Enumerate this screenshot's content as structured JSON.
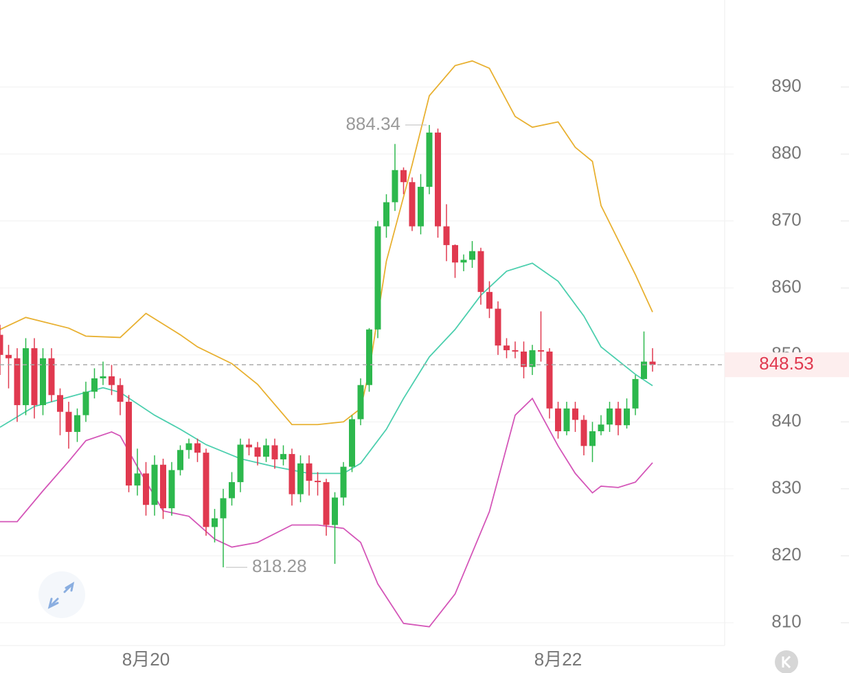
{
  "chart_data": {
    "type": "candlestick",
    "categories": [
      null,
      null,
      null,
      null,
      null,
      null,
      null,
      null,
      null,
      null,
      null,
      null,
      null,
      null,
      null,
      null,
      null,
      "8月20",
      null,
      null,
      null,
      null,
      null,
      null,
      null,
      null,
      null,
      null,
      null,
      null,
      null,
      null,
      null,
      null,
      null,
      null,
      null,
      null,
      null,
      null,
      null,
      null,
      null,
      null,
      null,
      null,
      null,
      null,
      null,
      null,
      null,
      null,
      null,
      null,
      null,
      null,
      null,
      null,
      null,
      null,
      null,
      null,
      null,
      null,
      null,
      "8月22",
      null,
      null,
      null,
      null,
      null,
      null,
      null,
      null,
      null,
      null,
      null
    ],
    "open": [
      853,
      850,
      849.5,
      842.5,
      851,
      842.5,
      849.5,
      844,
      841.5,
      838.5,
      841,
      844.5,
      846.5,
      846.8,
      845.5,
      843,
      830.5,
      832.3,
      827.6,
      833.6,
      827.1,
      832.8,
      835.8,
      836.8,
      835.4,
      824.3,
      825.6,
      828.6,
      831,
      836.6,
      836.2,
      834.8,
      836.5,
      834.4,
      835.2,
      829.2,
      833.8,
      831.2,
      831,
      824.6,
      828.7,
      833.3,
      840.4,
      845.5,
      853.8,
      869.2,
      872.8,
      877.6,
      875.8,
      869.2,
      875.1,
      883.2,
      869.2,
      866.4,
      863.8,
      864.2,
      865.5,
      859.4,
      856.9,
      851.4,
      850.7,
      850.5,
      848.2,
      850.7,
      850.5,
      842,
      838.6,
      842,
      840.3,
      836.4,
      838.6,
      839.6,
      842,
      839.5,
      842,
      846.4,
      849
    ],
    "high": [
      854.5,
      851.5,
      851,
      852.5,
      852.5,
      851,
      851,
      845,
      843,
      842,
      846,
      848,
      849,
      848.5,
      846.5,
      844,
      836,
      834,
      835,
      834.5,
      834,
      836.5,
      837.5,
      837.5,
      836,
      827,
      830,
      832.5,
      837.5,
      837.5,
      837,
      837.5,
      837.5,
      836.5,
      836,
      835,
      835,
      832.5,
      831.5,
      829.5,
      834,
      841,
      846.5,
      854,
      870,
      874,
      881.5,
      878,
      876.5,
      877,
      884.34,
      883.8,
      872.5,
      866.5,
      865,
      867,
      866,
      861,
      858,
      852.5,
      852,
      852,
      851.5,
      856.5,
      851,
      843,
      843,
      843,
      841,
      840,
      841,
      843,
      843,
      843.5,
      847,
      853.5,
      851
    ],
    "low": [
      847,
      845,
      840,
      841,
      840.5,
      841,
      843,
      838,
      836,
      837,
      840,
      843.5,
      845.5,
      844,
      841,
      829.5,
      829,
      826,
      826,
      825.5,
      826,
      832,
      834.5,
      834,
      823,
      822,
      818.28,
      827.5,
      829.5,
      835,
      833.5,
      834,
      833,
      833.5,
      827.5,
      828,
      829,
      829,
      823,
      818.8,
      827.5,
      832.5,
      839.5,
      844.5,
      852.5,
      867.5,
      871.5,
      874,
      868.5,
      868,
      874,
      867.5,
      864,
      861.5,
      862.5,
      863,
      857.5,
      855.5,
      850,
      849.5,
      849.5,
      846.5,
      847,
      849,
      840.5,
      837.5,
      838,
      838.5,
      835,
      834,
      838,
      838.5,
      838,
      839,
      841,
      846.5,
      847.5
    ],
    "close": [
      850,
      849.5,
      842.5,
      851,
      842.5,
      849.5,
      844,
      841.5,
      838.5,
      841,
      844.5,
      846.5,
      846.8,
      845.5,
      843,
      830.5,
      832.3,
      827.6,
      833.6,
      827.1,
      832.8,
      835.8,
      836.8,
      835.4,
      824.3,
      825.6,
      828.6,
      831,
      836.6,
      836.2,
      834.8,
      836.5,
      834.4,
      835.2,
      829.2,
      833.8,
      831.2,
      831,
      824.6,
      828.7,
      833.3,
      840.4,
      845.5,
      853.8,
      869.2,
      872.8,
      877.6,
      875.8,
      869.2,
      875.1,
      883.2,
      869.2,
      866.4,
      863.8,
      864.2,
      865.5,
      859.4,
      856.9,
      851.4,
      850.7,
      850.5,
      848.2,
      850.7,
      850.5,
      842,
      838.6,
      842,
      840.3,
      836.4,
      838.6,
      839.6,
      842,
      839.5,
      842,
      846.4,
      849,
      848.53
    ],
    "up_color": "#2db84d",
    "down_color": "#e0394f",
    "bands": [
      {
        "color": "#e8b030",
        "x": [
          0,
          3,
          8,
          10,
          14,
          17,
          21,
          23,
          27,
          30,
          34,
          37,
          40,
          42,
          43,
          45,
          48,
          50,
          53,
          55,
          57,
          60,
          62,
          65,
          67,
          69,
          70,
          74,
          76
        ],
        "values": [
          853.8,
          855.6,
          854,
          852.8,
          852.6,
          856.2,
          853,
          851.2,
          848.7,
          845.6,
          839.6,
          839.6,
          840,
          842,
          847.6,
          864,
          878.4,
          888.7,
          893.2,
          893.9,
          892.8,
          885.6,
          884,
          884.8,
          881,
          878.9,
          872.3,
          862,
          856.4
        ]
      },
      {
        "color": "#4ccfae",
        "x": [
          0,
          4,
          8,
          12,
          14,
          18,
          21,
          24,
          28,
          32,
          36,
          40,
          42,
          45,
          47,
          50,
          53,
          56,
          59,
          62,
          65,
          68,
          70,
          74,
          76
        ],
        "values": [
          839.2,
          842.3,
          843.7,
          845.1,
          844.4,
          841,
          838.9,
          836.6,
          834.5,
          833.3,
          832.3,
          832.3,
          833.8,
          838.9,
          843.5,
          849.7,
          853.8,
          858.9,
          862.5,
          863.7,
          861,
          855.8,
          851.2,
          847.1,
          845.4
        ]
      },
      {
        "color": "#d455b8",
        "x": [
          0,
          2,
          5,
          8,
          10,
          13,
          14,
          16,
          19,
          22,
          25,
          27,
          30,
          34,
          37,
          40,
          42,
          44,
          47,
          50,
          53,
          57,
          60,
          62,
          65,
          67,
          69,
          70,
          72,
          74,
          76
        ],
        "values": [
          825.1,
          825.1,
          829.7,
          834.1,
          837.2,
          838.5,
          837.9,
          833.3,
          826.7,
          825.9,
          822.5,
          821.3,
          822,
          824.6,
          824.6,
          824.1,
          822,
          815.8,
          809.9,
          809.4,
          814.3,
          826.6,
          841,
          843.5,
          836.4,
          832.3,
          829.4,
          830.4,
          830.2,
          831,
          833.9
        ]
      }
    ],
    "ylim": [
      806.6,
      903
    ],
    "yticks": [
      810,
      820,
      830,
      840,
      850,
      860,
      870,
      880,
      890
    ],
    "grid": true
  }
}
